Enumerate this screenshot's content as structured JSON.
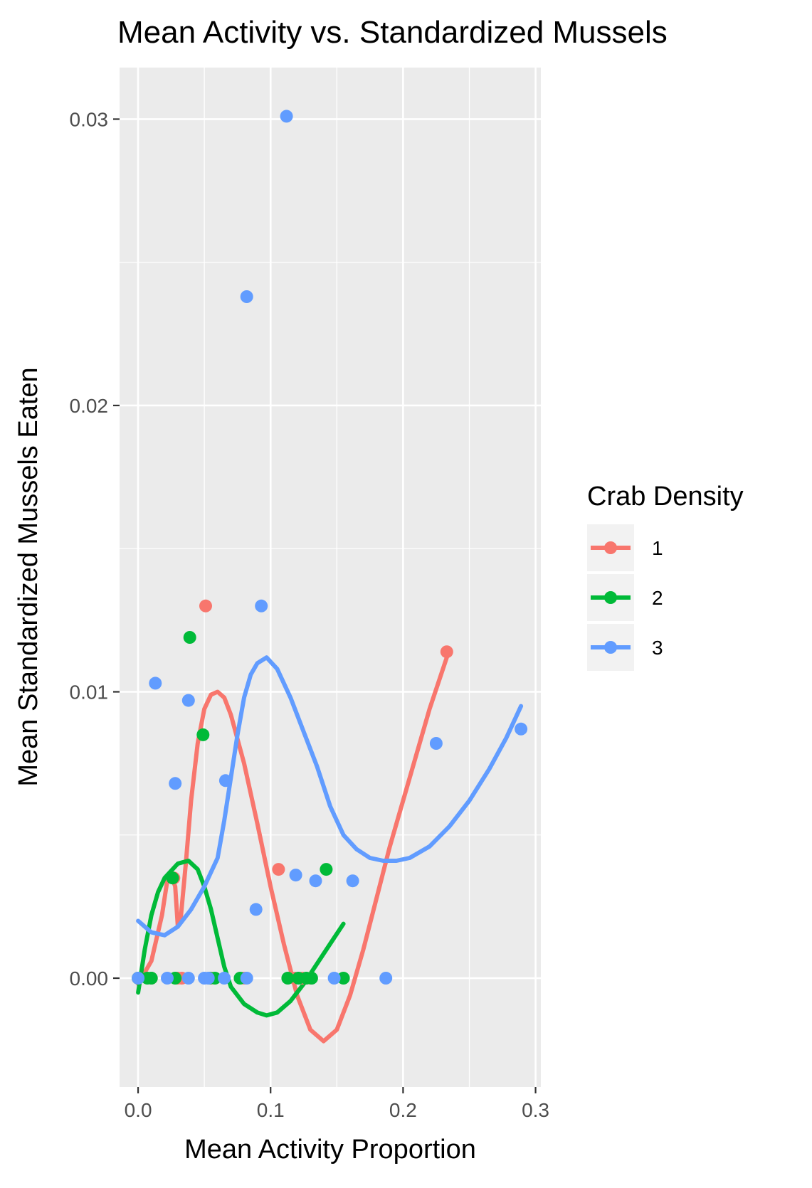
{
  "chart_data": {
    "type": "scatter",
    "title": "Mean Activity vs. Standardized Mussels",
    "xlabel": "Mean Activity Proportion",
    "ylabel": "Mean Standardized Mussels Eaten",
    "xlim": [
      -0.014,
      0.304
    ],
    "ylim": [
      -0.0038,
      0.0318
    ],
    "x_ticks": [
      0.0,
      0.1,
      0.2,
      0.3
    ],
    "x_tick_labels": [
      "0.0",
      "0.1",
      "0.2",
      "0.3"
    ],
    "y_ticks": [
      0.0,
      0.01,
      0.02,
      0.03
    ],
    "y_tick_labels": [
      "0.00",
      "0.01",
      "0.02",
      "0.03"
    ],
    "grid": true,
    "legend": {
      "title": "Crab Density",
      "placement": "right"
    },
    "series": [
      {
        "name": "1",
        "color": "#F8766D",
        "points": [
          [
            0.0,
            0.0
          ],
          [
            0.01,
            0.0
          ],
          [
            0.027,
            0.0035
          ],
          [
            0.03,
            0.0
          ],
          [
            0.033,
            0.0
          ],
          [
            0.051,
            0.013
          ],
          [
            0.055,
            0.0
          ],
          [
            0.08,
            0.0
          ],
          [
            0.106,
            0.0038
          ],
          [
            0.118,
            0.0
          ],
          [
            0.124,
            0.0
          ],
          [
            0.13,
            0.0
          ],
          [
            0.233,
            0.0114
          ]
        ],
        "smooth": [
          [
            0.0,
            -0.0002
          ],
          [
            0.01,
            0.0006
          ],
          [
            0.018,
            0.0022
          ],
          [
            0.022,
            0.0034
          ],
          [
            0.025,
            0.0036
          ],
          [
            0.028,
            0.0032
          ],
          [
            0.03,
            0.0018
          ],
          [
            0.032,
            0.002
          ],
          [
            0.036,
            0.004
          ],
          [
            0.04,
            0.0062
          ],
          [
            0.045,
            0.0082
          ],
          [
            0.05,
            0.0094
          ],
          [
            0.055,
            0.0099
          ],
          [
            0.06,
            0.01
          ],
          [
            0.065,
            0.0098
          ],
          [
            0.07,
            0.0092
          ],
          [
            0.08,
            0.0075
          ],
          [
            0.09,
            0.0054
          ],
          [
            0.1,
            0.0032
          ],
          [
            0.11,
            0.0012
          ],
          [
            0.12,
            -0.0006
          ],
          [
            0.13,
            -0.0018
          ],
          [
            0.14,
            -0.0022
          ],
          [
            0.15,
            -0.0018
          ],
          [
            0.16,
            -0.0006
          ],
          [
            0.17,
            0.001
          ],
          [
            0.18,
            0.0028
          ],
          [
            0.19,
            0.0046
          ],
          [
            0.2,
            0.0062
          ],
          [
            0.21,
            0.0078
          ],
          [
            0.22,
            0.0094
          ],
          [
            0.233,
            0.0112
          ]
        ]
      },
      {
        "name": "2",
        "color": "#00BA38",
        "points": [
          [
            0.0,
            0.0
          ],
          [
            0.007,
            0.0
          ],
          [
            0.01,
            0.0
          ],
          [
            0.026,
            0.0035
          ],
          [
            0.028,
            0.0
          ],
          [
            0.039,
            0.0119
          ],
          [
            0.049,
            0.0085
          ],
          [
            0.054,
            0.0
          ],
          [
            0.058,
            0.0
          ],
          [
            0.077,
            0.0
          ],
          [
            0.113,
            0.0
          ],
          [
            0.121,
            0.0
          ],
          [
            0.127,
            0.0
          ],
          [
            0.131,
            0.0
          ],
          [
            0.142,
            0.0038
          ],
          [
            0.155,
            0.0
          ]
        ],
        "smooth": [
          [
            0.0,
            -0.0005
          ],
          [
            0.005,
            0.001
          ],
          [
            0.01,
            0.0022
          ],
          [
            0.015,
            0.003
          ],
          [
            0.02,
            0.0035
          ],
          [
            0.03,
            0.004
          ],
          [
            0.038,
            0.0041
          ],
          [
            0.045,
            0.0038
          ],
          [
            0.05,
            0.0032
          ],
          [
            0.055,
            0.0024
          ],
          [
            0.06,
            0.0014
          ],
          [
            0.065,
            0.0004
          ],
          [
            0.07,
            -0.0003
          ],
          [
            0.08,
            -0.0009
          ],
          [
            0.09,
            -0.0012
          ],
          [
            0.097,
            -0.0013
          ],
          [
            0.105,
            -0.0012
          ],
          [
            0.115,
            -0.0008
          ],
          [
            0.125,
            -0.0002
          ],
          [
            0.135,
            0.0005
          ],
          [
            0.145,
            0.0012
          ],
          [
            0.155,
            0.0019
          ]
        ]
      },
      {
        "name": "3",
        "color": "#619CFF",
        "points": [
          [
            0.0,
            0.0
          ],
          [
            0.013,
            0.0103
          ],
          [
            0.022,
            0.0
          ],
          [
            0.028,
            0.0068
          ],
          [
            0.038,
            0.0
          ],
          [
            0.038,
            0.0097
          ],
          [
            0.05,
            0.0
          ],
          [
            0.053,
            0.0
          ],
          [
            0.065,
            0.0
          ],
          [
            0.066,
            0.0069
          ],
          [
            0.082,
            0.0
          ],
          [
            0.082,
            0.0238
          ],
          [
            0.089,
            0.0024
          ],
          [
            0.093,
            0.013
          ],
          [
            0.112,
            0.0301
          ],
          [
            0.119,
            0.0036
          ],
          [
            0.134,
            0.0034
          ],
          [
            0.148,
            0.0
          ],
          [
            0.162,
            0.0034
          ],
          [
            0.187,
            0.0
          ],
          [
            0.225,
            0.0082
          ],
          [
            0.289,
            0.0087
          ]
        ],
        "smooth": [
          [
            0.0,
            0.002
          ],
          [
            0.01,
            0.0016
          ],
          [
            0.02,
            0.0015
          ],
          [
            0.03,
            0.0018
          ],
          [
            0.04,
            0.0024
          ],
          [
            0.05,
            0.0032
          ],
          [
            0.06,
            0.0042
          ],
          [
            0.065,
            0.0055
          ],
          [
            0.07,
            0.007
          ],
          [
            0.075,
            0.0085
          ],
          [
            0.08,
            0.0098
          ],
          [
            0.085,
            0.0106
          ],
          [
            0.09,
            0.011
          ],
          [
            0.097,
            0.0112
          ],
          [
            0.105,
            0.0108
          ],
          [
            0.115,
            0.0098
          ],
          [
            0.125,
            0.0086
          ],
          [
            0.135,
            0.0074
          ],
          [
            0.145,
            0.006
          ],
          [
            0.155,
            0.005
          ],
          [
            0.165,
            0.0045
          ],
          [
            0.175,
            0.0042
          ],
          [
            0.185,
            0.0041
          ],
          [
            0.195,
            0.0041
          ],
          [
            0.205,
            0.0042
          ],
          [
            0.22,
            0.0046
          ],
          [
            0.235,
            0.0053
          ],
          [
            0.25,
            0.0062
          ],
          [
            0.265,
            0.0073
          ],
          [
            0.278,
            0.0084
          ],
          [
            0.289,
            0.0095
          ]
        ]
      }
    ]
  }
}
